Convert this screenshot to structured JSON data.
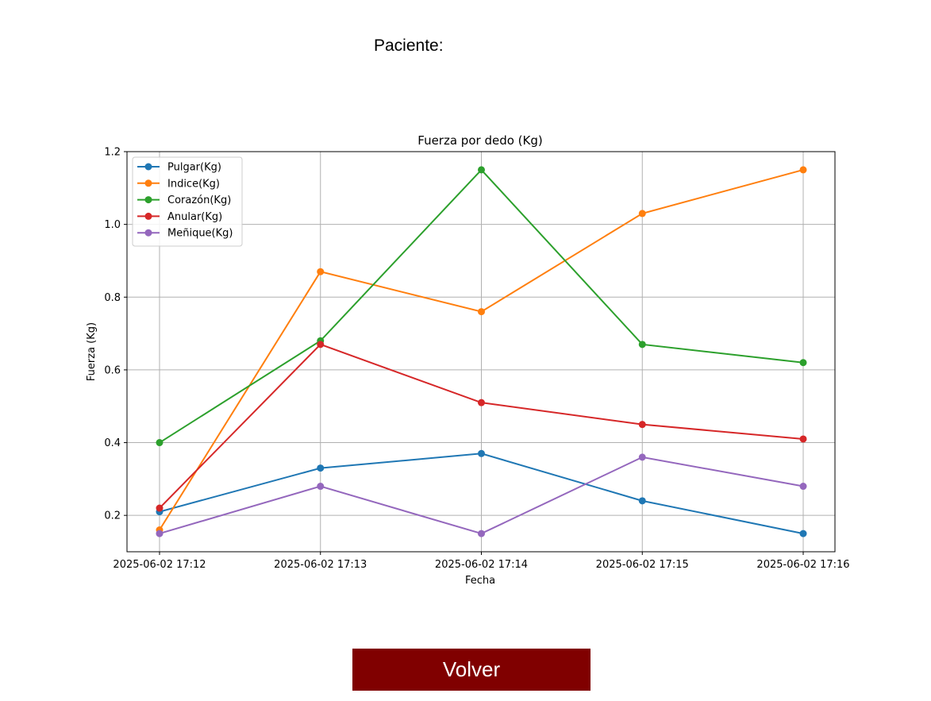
{
  "header": {
    "patient_label": "Paciente:"
  },
  "footer": {
    "back_label": "Volver"
  },
  "chart_data": {
    "type": "line",
    "title": "Fuerza por dedo (Kg)",
    "xlabel": "Fecha",
    "ylabel": "Fuerza (Kg)",
    "categories": [
      "2025-06-02 17:12",
      "2025-06-02 17:13",
      "2025-06-02 17:14",
      "2025-06-02 17:15",
      "2025-06-02 17:16"
    ],
    "ylim": [
      0.1,
      1.2
    ],
    "yticks": [
      0.2,
      0.4,
      0.6,
      0.8,
      1.0,
      1.2
    ],
    "grid": true,
    "legend_position": "top-left",
    "series": [
      {
        "name": "Pulgar(Kg)",
        "color": "#1f77b4",
        "values": [
          0.21,
          0.33,
          0.37,
          0.24,
          0.15
        ]
      },
      {
        "name": "Indice(Kg)",
        "color": "#ff7f0e",
        "values": [
          0.16,
          0.87,
          0.76,
          1.03,
          1.15
        ]
      },
      {
        "name": "Corazón(Kg)",
        "color": "#2ca02c",
        "values": [
          0.4,
          0.68,
          1.15,
          0.67,
          0.62
        ]
      },
      {
        "name": "Anular(Kg)",
        "color": "#d62728",
        "values": [
          0.22,
          0.67,
          0.51,
          0.45,
          0.41
        ]
      },
      {
        "name": "Meñique(Kg)",
        "color": "#9467bd",
        "values": [
          0.15,
          0.28,
          0.15,
          0.36,
          0.28
        ]
      }
    ]
  }
}
